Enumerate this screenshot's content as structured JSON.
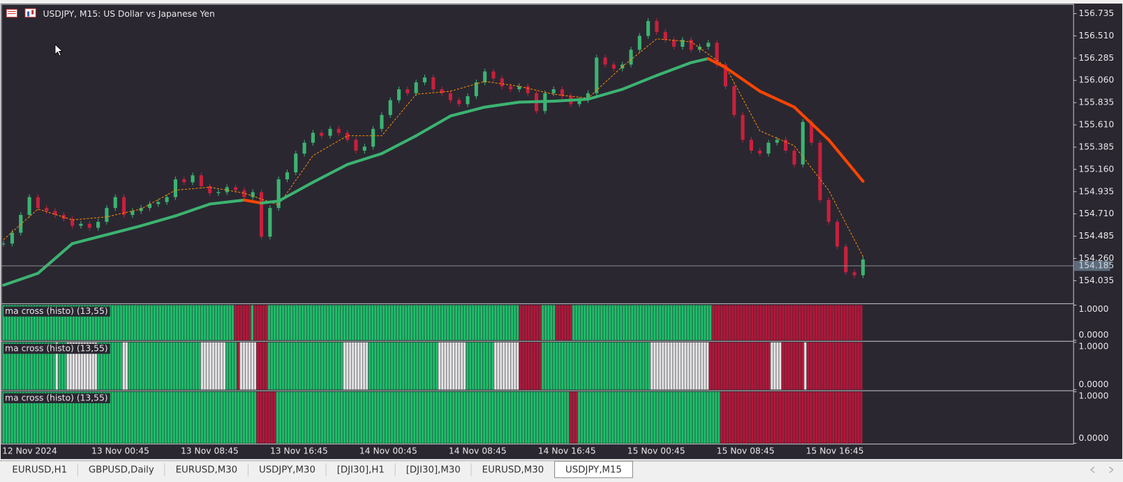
{
  "window": {
    "title": "USDJPY, M15:  US Dollar vs Japanese Yen"
  },
  "chart_data": {
    "type": "candlestick",
    "values": [
      154.41,
      154.52,
      154.7,
      154.88,
      154.77,
      154.74,
      154.7,
      154.66,
      154.59,
      154.61,
      154.57,
      154.63,
      154.77,
      154.88,
      154.7,
      154.74,
      154.77,
      154.81,
      154.83,
      154.88,
      155.06,
      155.03,
      155.1,
      154.99,
      154.92,
      154.93,
      154.98,
      154.95,
      154.88,
      154.93,
      154.48,
      154.77,
      155.06,
      155.13,
      155.32,
      155.43,
      155.53,
      155.5,
      155.57,
      155.53,
      155.46,
      155.35,
      155.39,
      155.57,
      155.71,
      155.86,
      155.97,
      155.93,
      156.04,
      156.09,
      155.97,
      155.93,
      155.86,
      155.82,
      155.9,
      156.04,
      156.15,
      156.08,
      156.0,
      155.97,
      156.0,
      155.93,
      155.75,
      155.93,
      155.97,
      155.9,
      155.82,
      155.86,
      155.93,
      156.29,
      156.22,
      156.18,
      156.22,
      156.37,
      156.51,
      156.66,
      156.55,
      156.47,
      156.4,
      156.47,
      156.37,
      156.4,
      156.44,
      156.22,
      156.0,
      155.71,
      155.46,
      155.35,
      155.32,
      155.43,
      155.46,
      155.35,
      155.21,
      155.64,
      155.43,
      154.85,
      154.63,
      154.38,
      154.12,
      154.09,
      154.25
    ],
    "up_color": "#3cb371",
    "down_color": "#c8203c",
    "ylim": [
      153.81,
      156.822
    ],
    "yticks": [
      156.735,
      {
        "value": 156.51,
        "label": "156.510"
      },
      156.285,
      {
        "value": 156.06,
        "label": "156.060"
      },
      155.835,
      {
        "value": 155.61,
        "label": "155.610"
      },
      155.385,
      {
        "value": 155.16,
        "label": "155.160"
      },
      154.935,
      {
        "value": 154.71,
        "label": "154.710"
      },
      154.485,
      {
        "value": 154.26,
        "label": "154.260"
      },
      154.035
    ],
    "current_price": {
      "value": 154.185,
      "label": "154.185"
    },
    "time_labels": [
      "12 Nov 2024",
      "13 Nov 00:45",
      "13 Nov 08:45",
      "13 Nov 16:45",
      "14 Nov 00:45",
      "14 Nov 08:45",
      "14 Nov 16:45",
      "15 Nov 00:45",
      "15 Nov 08:45",
      "15 Nov 16:45"
    ],
    "series": [
      {
        "color": "#ff8c00",
        "dashed": true,
        "x": [
          0,
          4,
          8,
          12,
          16,
          20,
          24,
          28,
          32,
          36,
          40,
          44,
          48,
          52,
          56,
          60,
          64,
          68,
          72,
          76,
          80,
          84,
          88,
          92,
          96,
          100
        ],
        "values": [
          154.45,
          154.76,
          154.65,
          154.68,
          154.76,
          154.95,
          154.98,
          154.92,
          154.8,
          155.3,
          155.5,
          155.5,
          155.92,
          155.95,
          156.05,
          156.0,
          155.92,
          155.88,
          156.2,
          156.48,
          156.45,
          156.2,
          155.55,
          155.4,
          154.95,
          154.28
        ]
      },
      {
        "color": "#3cb371",
        "down_color": "#ff4500",
        "x": [
          0,
          4,
          8,
          12,
          16,
          20,
          24,
          28,
          30,
          32,
          36,
          40,
          44,
          48,
          52,
          56,
          60,
          64,
          68,
          72,
          76,
          80,
          82,
          84,
          88,
          92,
          96,
          100
        ],
        "values": [
          153.99,
          154.11,
          154.41,
          154.5,
          154.59,
          154.69,
          154.81,
          154.85,
          154.82,
          154.84,
          155.03,
          155.21,
          155.32,
          155.5,
          155.7,
          155.79,
          155.84,
          155.85,
          155.87,
          155.97,
          156.11,
          156.24,
          156.28,
          156.19,
          155.95,
          155.79,
          155.46,
          155.04
        ]
      }
    ]
  },
  "indicators": [
    {
      "label": "ma cross (histo) (13,55)",
      "ylim": [
        0,
        1
      ],
      "yticks": [
        {
          "value": 1,
          "label": "1.0000"
        },
        {
          "value": 0,
          "label": "0.0000"
        }
      ],
      "runs": [
        {
          "color": "#1fbf6b",
          "bars": 83
        },
        {
          "color": "#b3173a",
          "bars": 6
        },
        {
          "color": "#1fbf6b",
          "bars": 1
        },
        {
          "color": "#b3173a",
          "bars": 5
        },
        {
          "color": "#1fbf6b",
          "bars": 90
        },
        {
          "color": "#b3173a",
          "bars": 8
        },
        {
          "color": "#1fbf6b",
          "bars": 5
        },
        {
          "color": "#b3173a",
          "bars": 6
        },
        {
          "color": "#1fbf6b",
          "bars": 50
        },
        {
          "color": "#b3173a",
          "bars": 54
        }
      ]
    },
    {
      "label": "ma cross (histo) (13,55)",
      "ylim": [
        0,
        1
      ],
      "yticks": [
        {
          "value": 1,
          "label": "1.0000"
        },
        {
          "value": 0,
          "label": "0.0000"
        }
      ],
      "runs": [
        {
          "color": "#1fbf6b",
          "bars": 19
        },
        {
          "color": "#e6e6e6",
          "bars": 1
        },
        {
          "color": "#1fbf6b",
          "bars": 3
        },
        {
          "color": "#e6e6e6",
          "bars": 11
        },
        {
          "color": "#1fbf6b",
          "bars": 9
        },
        {
          "color": "#e6e6e6",
          "bars": 2
        },
        {
          "color": "#1fbf6b",
          "bars": 26
        },
        {
          "color": "#e6e6e6",
          "bars": 9
        },
        {
          "color": "#1fbf6b",
          "bars": 4
        },
        {
          "color": "#b3173a",
          "bars": 1
        },
        {
          "color": "#e6e6e6",
          "bars": 6
        },
        {
          "color": "#b3173a",
          "bars": 4
        },
        {
          "color": "#1fbf6b",
          "bars": 27
        },
        {
          "color": "#e6e6e6",
          "bars": 9
        },
        {
          "color": "#1fbf6b",
          "bars": 25
        },
        {
          "color": "#e6e6e6",
          "bars": 10
        },
        {
          "color": "#1fbf6b",
          "bars": 10
        },
        {
          "color": "#e6e6e6",
          "bars": 9
        },
        {
          "color": "#b3173a",
          "bars": 8
        },
        {
          "color": "#1fbf6b",
          "bars": 39
        },
        {
          "color": "#e6e6e6",
          "bars": 21
        },
        {
          "color": "#b3173a",
          "bars": 22
        },
        {
          "color": "#e6e6e6",
          "bars": 4
        },
        {
          "color": "#b3173a",
          "bars": 8
        },
        {
          "color": "#e6e6e6",
          "bars": 1
        },
        {
          "color": "#b3173a",
          "bars": 20
        }
      ]
    },
    {
      "label": "ma cross (histo) (13,55)",
      "ylim": [
        0,
        1
      ],
      "yticks": [
        {
          "value": 1,
          "label": "1.0000"
        },
        {
          "value": 0,
          "label": "0.0000"
        }
      ],
      "runs": [
        {
          "color": "#1fbf6b",
          "bars": 91
        },
        {
          "color": "#b3173a",
          "bars": 7
        },
        {
          "color": "#1fbf6b",
          "bars": 105
        },
        {
          "color": "#b3173a",
          "bars": 3
        },
        {
          "color": "#1fbf6b",
          "bars": 51
        },
        {
          "color": "#b3173a",
          "bars": 51
        }
      ]
    }
  ],
  "tabs": [
    {
      "label": "EURUSD,H1",
      "active": false
    },
    {
      "label": "GBPUSD,Daily",
      "active": false
    },
    {
      "label": "EURUSD,M30",
      "active": false
    },
    {
      "label": "USDJPY,M30",
      "active": false
    },
    {
      "label": "[DJI30],H1",
      "active": false
    },
    {
      "label": "[DJI30],M30",
      "active": false
    },
    {
      "label": "EURUSD,M30",
      "active": false
    },
    {
      "label": "USDJPY,M15",
      "active": true
    }
  ]
}
